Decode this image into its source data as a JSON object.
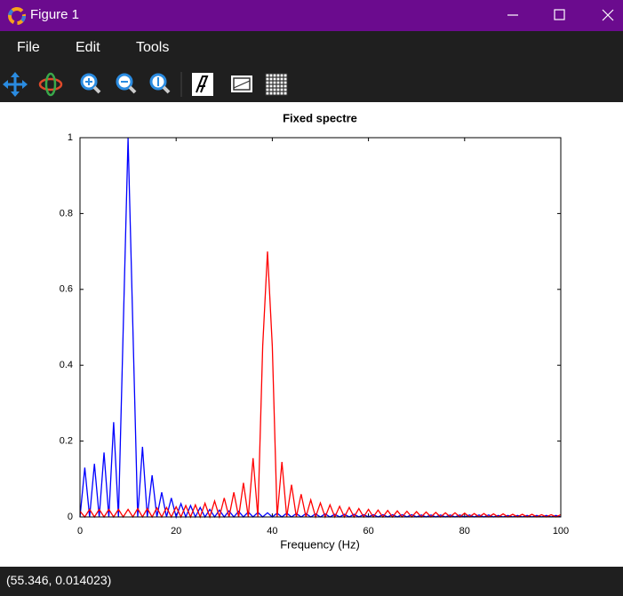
{
  "window": {
    "title": "Figure 1"
  },
  "menu": [
    "File",
    "Edit",
    "Tools"
  ],
  "status": "(55.346, 0.014023)",
  "chart_data": {
    "type": "line",
    "title": "Fixed spectre",
    "x_label": "Frequency (Hz)",
    "xlim": [
      0,
      100
    ],
    "ylim": [
      0,
      1
    ],
    "xticks": [
      0,
      20,
      40,
      60,
      80,
      100
    ],
    "yticks": [
      0,
      0.2,
      0.4,
      0.6,
      0.8,
      1
    ],
    "grid": false,
    "x": [
      0,
      1,
      2,
      3,
      4,
      5,
      6,
      7,
      8,
      9,
      10,
      11,
      12,
      13,
      14,
      15,
      16,
      17,
      18,
      19,
      20,
      21,
      22,
      23,
      24,
      25,
      26,
      27,
      28,
      29,
      30,
      31,
      32,
      33,
      34,
      35,
      36,
      37,
      38,
      39,
      40,
      41,
      42,
      43,
      44,
      45,
      46,
      47,
      48,
      49,
      50,
      51,
      52,
      53,
      54,
      55,
      56,
      57,
      58,
      59,
      60,
      61,
      62,
      63,
      64,
      65,
      66,
      67,
      68,
      69,
      70,
      71,
      72,
      73,
      74,
      75,
      76,
      77,
      78,
      79,
      80,
      81,
      82,
      83,
      84,
      85,
      86,
      87,
      88,
      89,
      90,
      91,
      92,
      93,
      94,
      95,
      96,
      97,
      98,
      99,
      100
    ],
    "series": [
      {
        "color": "#0000ff",
        "values": [
          0,
          0.13,
          0,
          0.14,
          0,
          0.17,
          0,
          0.25,
          0,
          0.5,
          1,
          0.5,
          0,
          0.185,
          0,
          0.11,
          0,
          0.065,
          0,
          0.05,
          0,
          0.035,
          0,
          0.03,
          0,
          0.025,
          0,
          0.02,
          0,
          0.018,
          0,
          0.016,
          0,
          0.015,
          0,
          0.013,
          0,
          0.012,
          0,
          0.011,
          0,
          0.01,
          0,
          0.01,
          0,
          0.009,
          0,
          0.009,
          0,
          0.008,
          0,
          0.008,
          0,
          0.007,
          0,
          0.007,
          0,
          0.007,
          0,
          0.006,
          0,
          0.006,
          0,
          0.006,
          0,
          0.006,
          0,
          0.006,
          0,
          0.006,
          0,
          0.005,
          0,
          0.005,
          0,
          0.005,
          0,
          0.005,
          0,
          0.005,
          0,
          0.005,
          0,
          0.005,
          0,
          0.005,
          0,
          0.004,
          0,
          0.004,
          0,
          0.004,
          0,
          0.004,
          0,
          0.004,
          0,
          0.004,
          0,
          0.004,
          0
        ]
      },
      {
        "color": "#ff0000",
        "values": [
          0.015,
          0,
          0.02,
          0,
          0.02,
          0,
          0.02,
          0,
          0.02,
          0,
          0.02,
          0,
          0.022,
          0,
          0.022,
          0,
          0.024,
          0,
          0.025,
          0,
          0.027,
          0,
          0.03,
          0,
          0.032,
          0,
          0.036,
          0,
          0.042,
          0,
          0.05,
          0,
          0.065,
          0,
          0.09,
          0,
          0.155,
          0,
          0.45,
          0.7,
          0.45,
          0,
          0.145,
          0,
          0.085,
          0,
          0.06,
          0,
          0.045,
          0,
          0.037,
          0,
          0.032,
          0,
          0.028,
          0,
          0.025,
          0,
          0.022,
          0,
          0.02,
          0,
          0.018,
          0,
          0.017,
          0,
          0.016,
          0,
          0.015,
          0,
          0.014,
          0,
          0.013,
          0,
          0.012,
          0,
          0.011,
          0,
          0.011,
          0,
          0.01,
          0,
          0.009,
          0,
          0.009,
          0,
          0.008,
          0,
          0.008,
          0,
          0.007,
          0,
          0.007,
          0,
          0.007,
          0,
          0.006,
          0,
          0.006,
          0,
          0.006
        ]
      }
    ]
  }
}
